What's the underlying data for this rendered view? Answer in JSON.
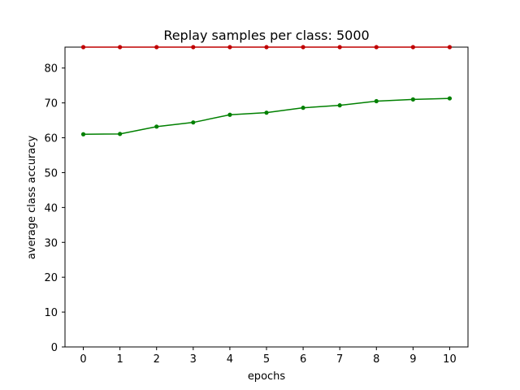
{
  "chart_data": {
    "type": "line",
    "title": "Replay samples per class: 5000",
    "xlabel": "epochs",
    "ylabel": "average class accuracy",
    "x": [
      0,
      1,
      2,
      3,
      4,
      5,
      6,
      7,
      8,
      9,
      10
    ],
    "xlim": [
      -0.5,
      10.5
    ],
    "ylim": [
      0,
      86
    ],
    "xticks": [
      "0",
      "1",
      "2",
      "3",
      "4",
      "5",
      "6",
      "7",
      "8",
      "9",
      "10"
    ],
    "yticks": [
      "0",
      "10",
      "20",
      "30",
      "40",
      "50",
      "60",
      "70",
      "80"
    ],
    "grid": false,
    "series": [
      {
        "color": "#008000",
        "marker": "dot",
        "values": [
          61.0,
          61.1,
          63.2,
          64.4,
          66.6,
          67.2,
          68.6,
          69.3,
          70.5,
          71.0,
          71.3
        ]
      },
      {
        "color": "#c00000",
        "marker": "dot",
        "values": [
          86,
          86,
          86,
          86,
          86,
          86,
          86,
          86,
          86,
          86,
          86
        ]
      }
    ]
  }
}
